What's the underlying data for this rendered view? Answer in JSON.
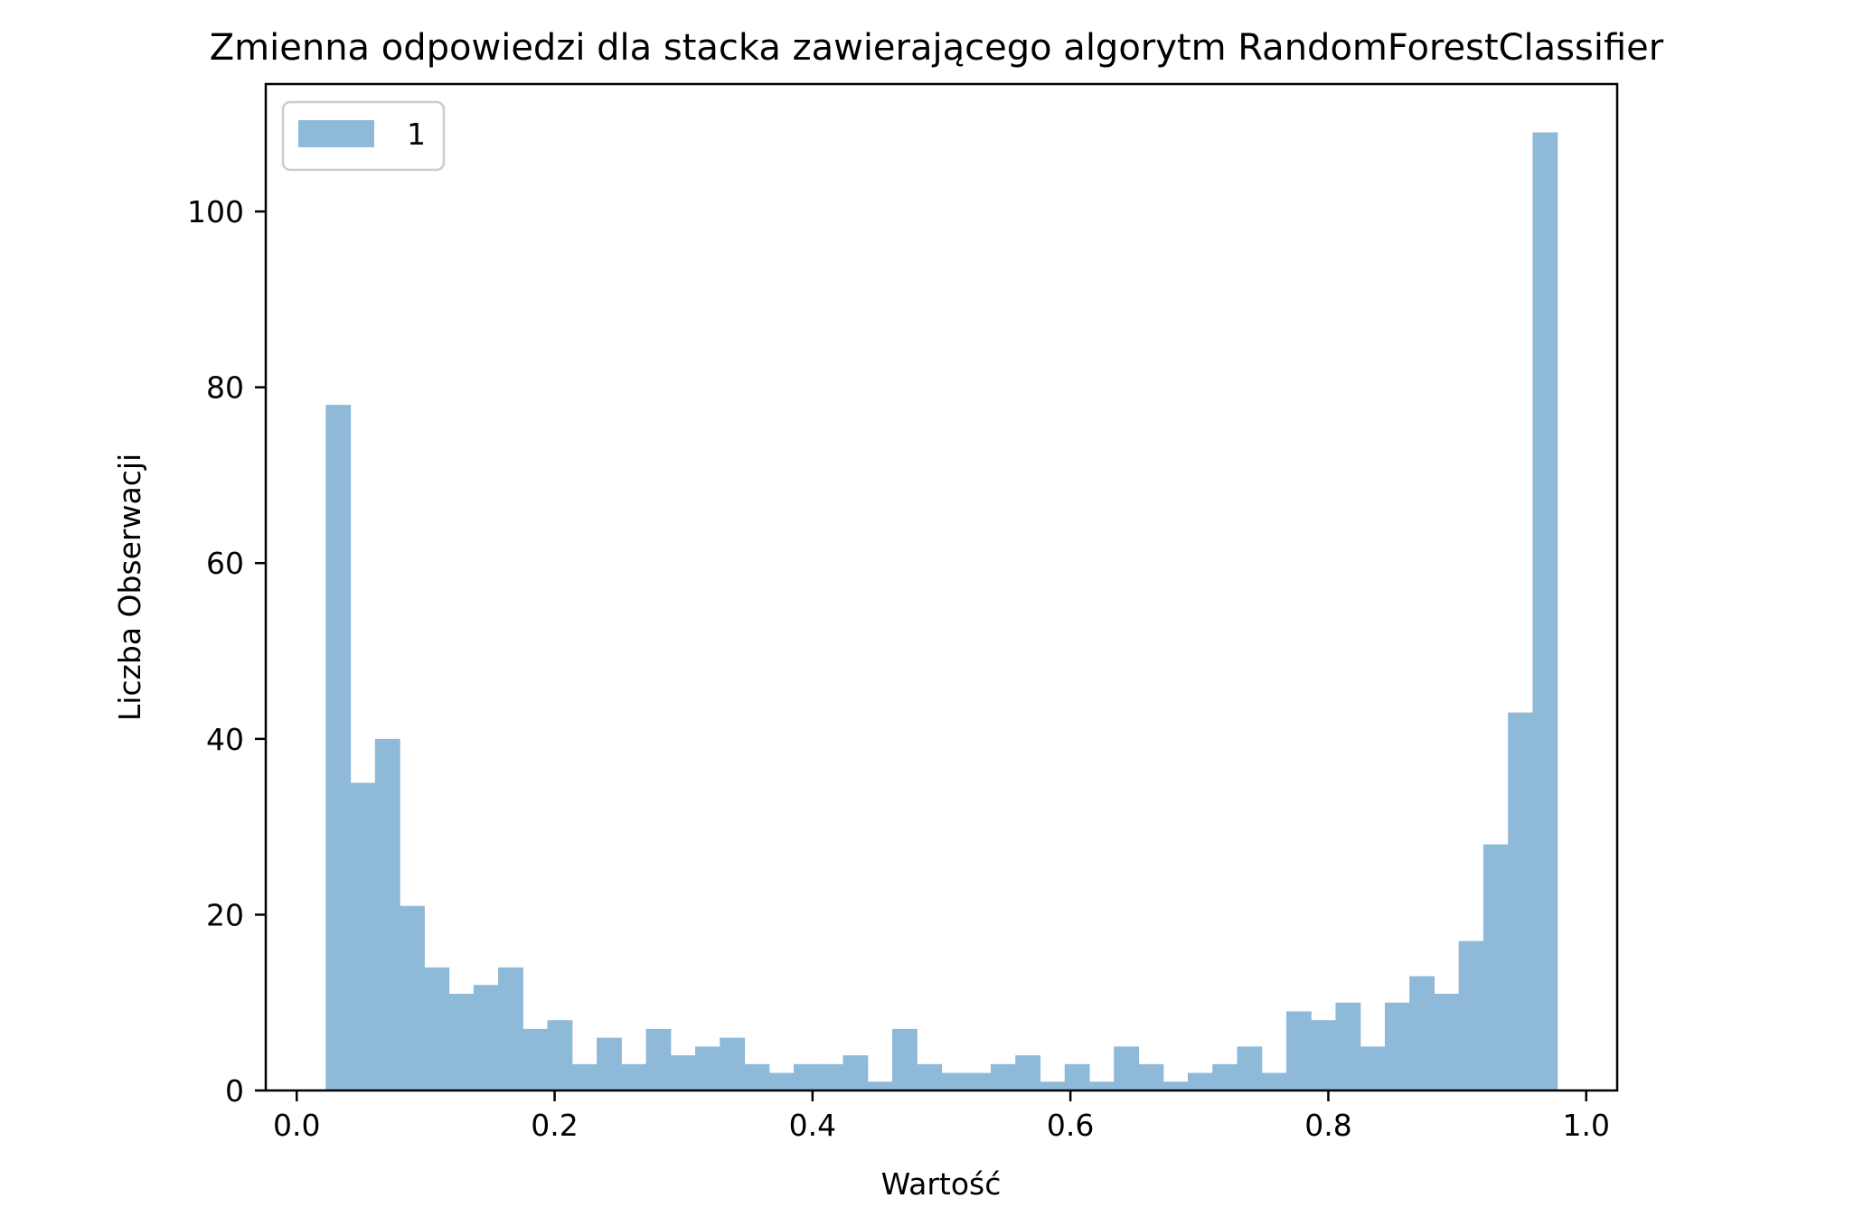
{
  "chart_data": {
    "type": "bar",
    "title": "Zmienna odpowiedzi dla stacka zawierającego algorytm RandomForestClassifier",
    "xlabel": "Wartość",
    "ylabel": "Liczba Obserwacji",
    "xlim": [
      -0.024,
      1.024
    ],
    "ylim": [
      0,
      114.5
    ],
    "x_ticks": [
      "0.0",
      "0.2",
      "0.4",
      "0.6",
      "0.8",
      "1.0"
    ],
    "x_tick_values": [
      0.0,
      0.2,
      0.4,
      0.6,
      0.8,
      1.0
    ],
    "y_ticks": [
      "0",
      "20",
      "40",
      "60",
      "80",
      "100"
    ],
    "y_tick_values": [
      0,
      20,
      40,
      60,
      80,
      100
    ],
    "legend": {
      "placement": "top-left",
      "entries": [
        "1"
      ]
    },
    "grid": false,
    "color": "#8fb9d9",
    "series": [
      {
        "name": "1",
        "bin_start": 0.0225,
        "bin_width": 0.0191,
        "values": [
          78,
          35,
          40,
          21,
          14,
          11,
          12,
          14,
          7,
          8,
          3,
          6,
          3,
          7,
          4,
          5,
          6,
          3,
          2,
          3,
          3,
          4,
          1,
          7,
          3,
          2,
          2,
          3,
          4,
          1,
          3,
          1,
          5,
          3,
          1,
          2,
          3,
          5,
          2,
          9,
          8,
          10,
          5,
          10,
          13,
          11,
          17,
          28,
          43,
          109
        ]
      }
    ]
  }
}
